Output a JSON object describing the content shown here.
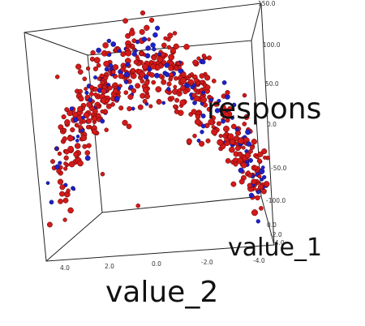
{
  "chart_data": {
    "type": "scatter",
    "projection": "3d",
    "axis_titles": {
      "x": "value_2",
      "y": "respons",
      "z": "value_1"
    },
    "x_ticks": [
      "4.0",
      "2.0",
      "0.0",
      "-2.0",
      "-4.0"
    ],
    "y_ticks": [
      "150.0",
      "100.0",
      "50.0",
      "0.0",
      "-50.0",
      "-100.0"
    ],
    "z_ticks": [
      "0.0",
      "-2.0",
      "-4.0"
    ],
    "colors": {
      "red": "#d21a1a",
      "blue": "#1f22c8",
      "outline": "#5a0000"
    },
    "point_count": 620,
    "blue_fraction": 0.22,
    "x_range": [
      -4,
      4
    ],
    "y_range": [
      -150,
      150
    ],
    "z_range": [
      -4,
      4
    ],
    "grid": false,
    "legend": "none"
  }
}
